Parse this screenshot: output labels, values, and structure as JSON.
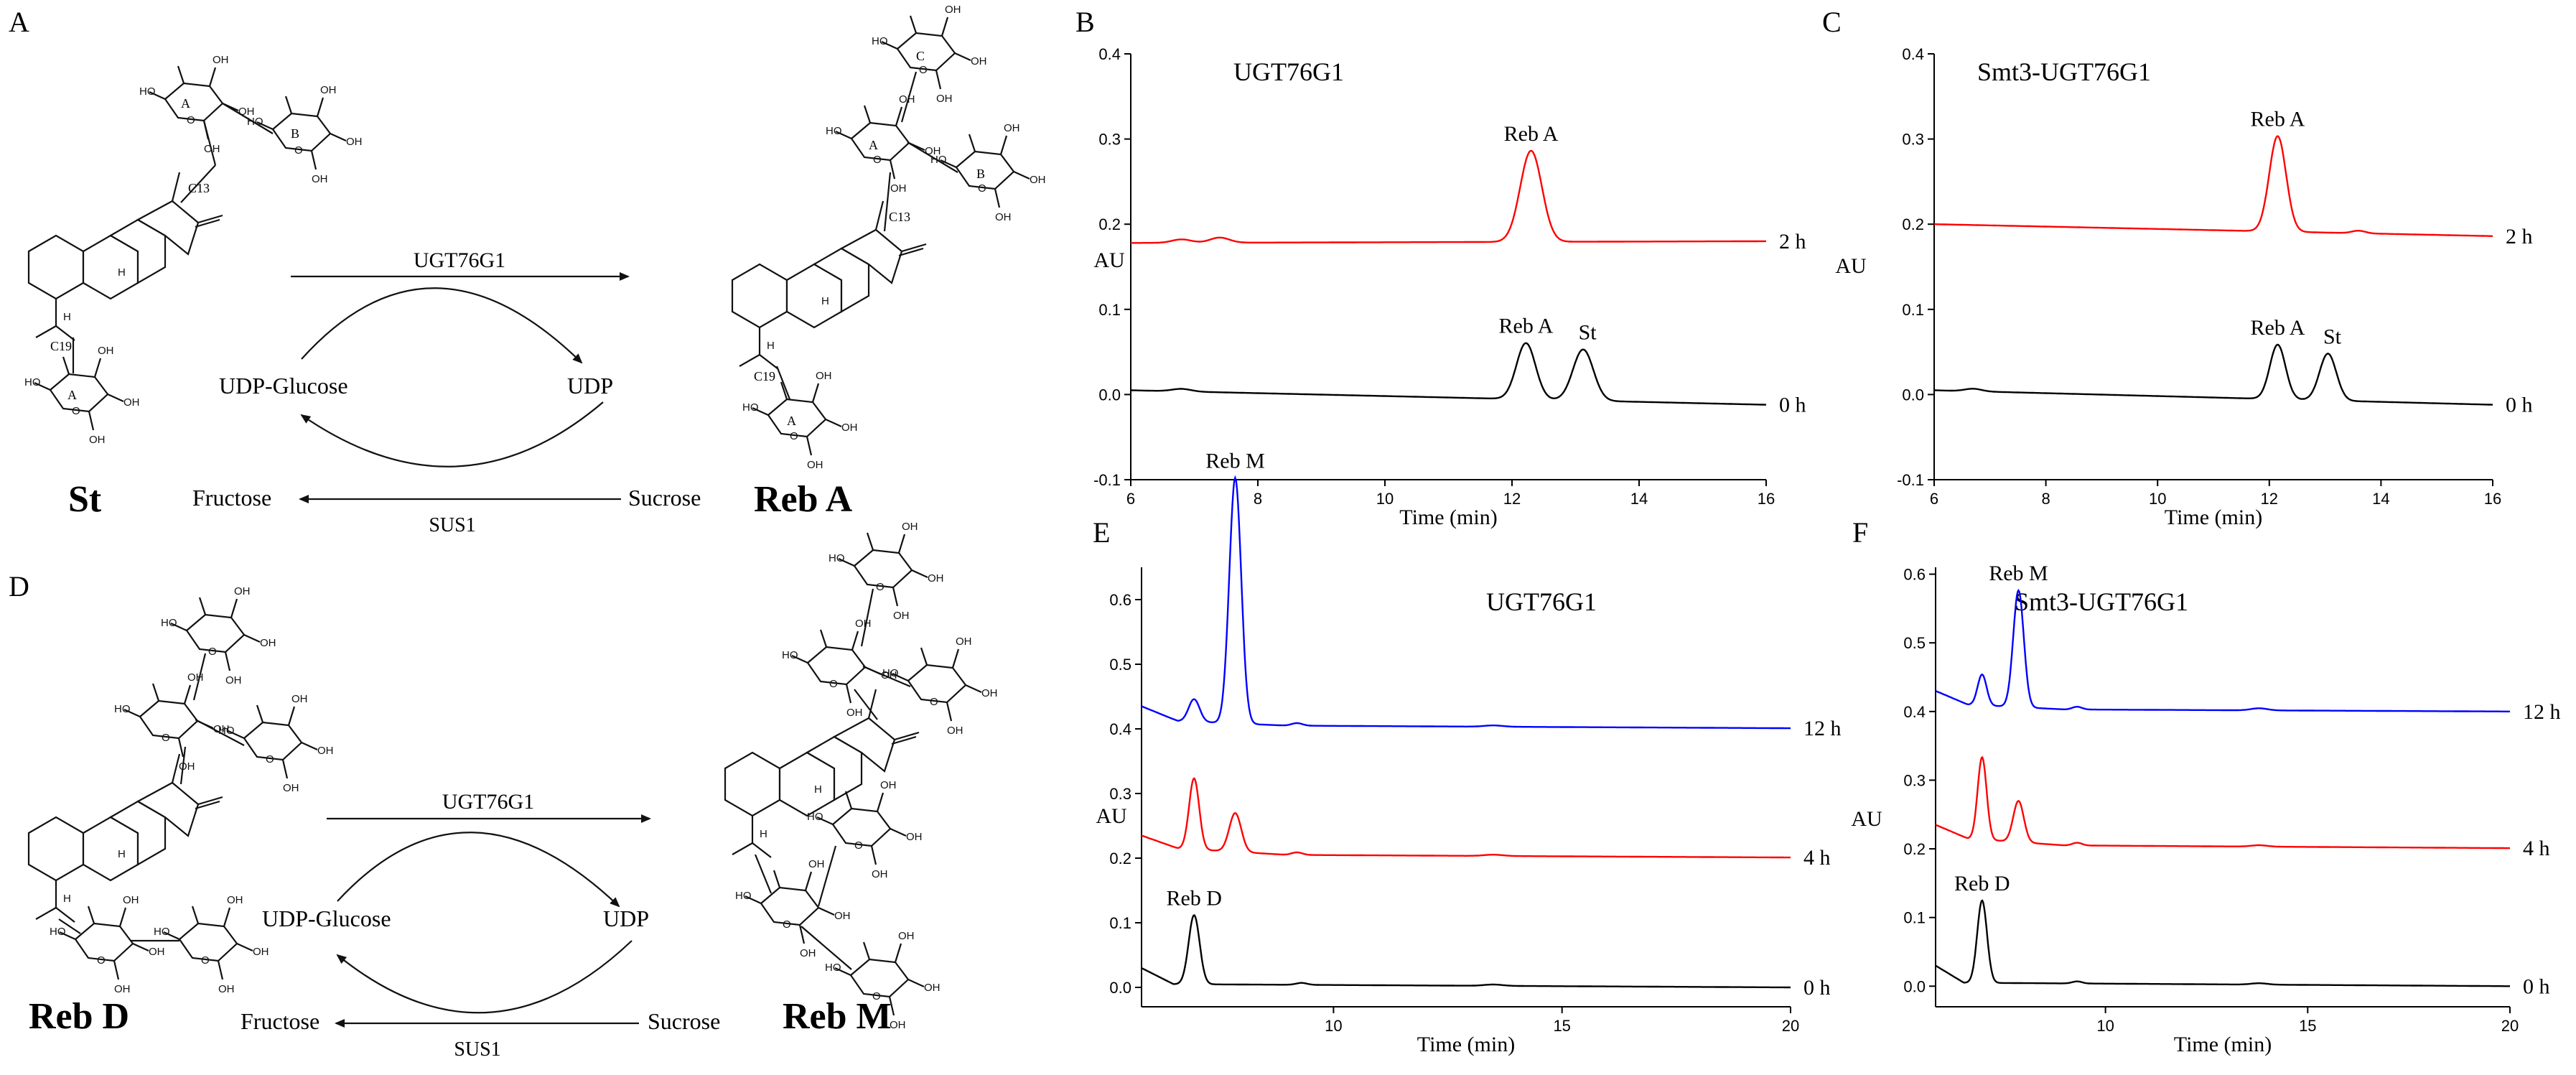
{
  "panel_labels": {
    "A": "A",
    "B": "B",
    "C": "C",
    "D": "D",
    "E": "E",
    "F": "F"
  },
  "scheme_a": {
    "substrate": "St",
    "product": "Reb A",
    "enzyme": "UGT76G1",
    "cofactor_in": "UDP-Glucose",
    "cofactor_out": "UDP",
    "sucrose": "Sucrose",
    "fructose": "Fructose",
    "enzyme2": "SUS1",
    "ring_labels": {
      "A": "A",
      "B": "B",
      "C": "C"
    },
    "c13": "C13",
    "c19": "C19"
  },
  "scheme_d": {
    "substrate": "Reb D",
    "product": "Reb M",
    "enzyme": "UGT76G1",
    "cofactor_in": "UDP-Glucose",
    "cofactor_out": "UDP",
    "sucrose": "Sucrose",
    "fructose": "Fructose",
    "enzyme2": "SUS1"
  },
  "colors": {
    "h0": "#000000",
    "h2": "#ff0000",
    "h4": "#ff0000",
    "h12": "#0000ff"
  },
  "chart_data": [
    {
      "id": "B",
      "type": "line",
      "title": "UGT76G1",
      "xlabel": "Time (min)",
      "ylabel": "AU",
      "xlim": [
        6,
        16
      ],
      "ylim": [
        -0.1,
        0.4
      ],
      "xticks": [
        6,
        8,
        10,
        12,
        14,
        16
      ],
      "yticks": [
        -0.1,
        0.0,
        0.1,
        0.2,
        0.3,
        0.4
      ],
      "ytick_labels": [
        "-0.1",
        "0.0",
        "0.1",
        "0.2",
        "0.3",
        "0.4"
      ],
      "series": [
        {
          "name": "2 h",
          "color": "#ff0000",
          "baseline": [
            [
              6,
              0.178
            ],
            [
              16,
              0.18
            ]
          ],
          "wiggles": [
            [
              6.8,
              0.004,
              0.15
            ],
            [
              7.4,
              0.006,
              0.15
            ]
          ],
          "peaks": [
            {
              "t": 12.3,
              "h": 0.107,
              "w": 0.17,
              "label": "Reb A"
            }
          ]
        },
        {
          "name": "0 h",
          "color": "#000000",
          "baseline": [
            [
              6,
              0.005
            ],
            [
              16,
              -0.012
            ]
          ],
          "wiggles": [
            [
              6.8,
              0.003,
              0.15
            ]
          ],
          "peaks": [
            {
              "t": 12.22,
              "h": 0.066,
              "w": 0.15,
              "label": "Reb A"
            },
            {
              "t": 13.12,
              "h": 0.06,
              "w": 0.16,
              "label": "St"
            }
          ]
        }
      ]
    },
    {
      "id": "C",
      "type": "line",
      "title": "Smt3-UGT76G1",
      "xlabel": "Time (min)",
      "ylabel": "AU",
      "xlim": [
        6,
        16
      ],
      "ylim": [
        -0.1,
        0.4
      ],
      "xticks": [
        6,
        8,
        10,
        12,
        14,
        16
      ],
      "yticks": [
        -0.1,
        0.0,
        0.1,
        0.2,
        0.3,
        0.4
      ],
      "ytick_labels": [
        "-0.1",
        "0.0",
        "0.1",
        "0.2",
        "0.3",
        "0.4"
      ],
      "series": [
        {
          "name": "2 h",
          "color": "#ff0000",
          "baseline": [
            [
              6,
              0.2
            ],
            [
              16,
              0.186
            ]
          ],
          "wiggles": [
            [
              13.6,
              0.003,
              0.12
            ]
          ],
          "peaks": [
            {
              "t": 12.15,
              "h": 0.112,
              "w": 0.15,
              "label": "Reb A"
            }
          ]
        },
        {
          "name": "0 h",
          "color": "#000000",
          "baseline": [
            [
              6,
              0.005
            ],
            [
              16,
              -0.012
            ]
          ],
          "wiggles": [
            [
              6.7,
              0.003,
              0.15
            ]
          ],
          "peaks": [
            {
              "t": 12.15,
              "h": 0.064,
              "w": 0.14,
              "label": "Reb A"
            },
            {
              "t": 13.05,
              "h": 0.055,
              "w": 0.15,
              "label": "St"
            }
          ]
        }
      ]
    },
    {
      "id": "E",
      "type": "line",
      "title": "UGT76G1",
      "xlabel": "Time (min)",
      "ylabel": "AU",
      "xlim": [
        5.8,
        20
      ],
      "ylim": [
        -0.03,
        0.65
      ],
      "xticks": [
        10,
        15,
        20
      ],
      "yticks": [
        0.0,
        0.1,
        0.2,
        0.3,
        0.4,
        0.5,
        0.6
      ],
      "ytick_labels": [
        "0.0",
        "0.1",
        "0.2",
        "0.3",
        "0.4",
        "0.5",
        "0.6"
      ],
      "series": [
        {
          "name": "12 h",
          "color": "#0000ff",
          "baseline": [
            [
              5.8,
              0.435
            ],
            [
              6.6,
              0.412
            ],
            [
              9,
              0.405
            ],
            [
              20,
              0.401
            ]
          ],
          "wiggles": [
            [
              9.2,
              0.004,
              0.12
            ],
            [
              13.5,
              0.002,
              0.2
            ]
          ],
          "peaks": [
            {
              "t": 6.95,
              "h": 0.035,
              "w": 0.12,
              "label": ""
            },
            {
              "t": 7.85,
              "h": 0.38,
              "w": 0.13,
              "label": "Reb M"
            }
          ]
        },
        {
          "name": "4 h",
          "color": "#ff0000",
          "baseline": [
            [
              5.8,
              0.235
            ],
            [
              6.6,
              0.215
            ],
            [
              9,
              0.205
            ],
            [
              20,
              0.201
            ]
          ],
          "wiggles": [
            [
              9.2,
              0.004,
              0.12
            ],
            [
              13.5,
              0.002,
              0.2
            ]
          ],
          "peaks": [
            {
              "t": 6.95,
              "h": 0.11,
              "w": 0.11,
              "label": ""
            },
            {
              "t": 7.85,
              "h": 0.06,
              "w": 0.13,
              "label": ""
            }
          ]
        },
        {
          "name": "0 h",
          "color": "#000000",
          "baseline": [
            [
              5.8,
              0.03
            ],
            [
              6.5,
              0.005
            ],
            [
              20,
              0.0
            ]
          ],
          "wiggles": [
            [
              9.3,
              0.003,
              0.12
            ],
            [
              13.5,
              0.002,
              0.2
            ]
          ],
          "peaks": [
            {
              "t": 6.95,
              "h": 0.107,
              "w": 0.12,
              "label": "Reb D"
            }
          ]
        }
      ]
    },
    {
      "id": "F",
      "type": "line",
      "title": "Smt3-UGT76G1",
      "xlabel": "Time (min)",
      "ylabel": "AU",
      "xlim": [
        5.8,
        20
      ],
      "ylim": [
        -0.03,
        0.61
      ],
      "xticks": [
        10,
        15,
        20
      ],
      "yticks": [
        0.0,
        0.1,
        0.2,
        0.3,
        0.4,
        0.5,
        0.6
      ],
      "ytick_labels": [
        "0.0",
        "0.1",
        "0.2",
        "0.3",
        "0.4",
        "0.5",
        "0.6"
      ],
      "series": [
        {
          "name": "12 h",
          "color": "#0000ff",
          "baseline": [
            [
              5.8,
              0.43
            ],
            [
              6.6,
              0.41
            ],
            [
              9,
              0.403
            ],
            [
              20,
              0.4
            ]
          ],
          "wiggles": [
            [
              9.3,
              0.004,
              0.12
            ],
            [
              13.8,
              0.003,
              0.2
            ]
          ],
          "peaks": [
            {
              "t": 6.95,
              "h": 0.045,
              "w": 0.11,
              "label": ""
            },
            {
              "t": 7.85,
              "h": 0.17,
              "w": 0.13,
              "label": "Reb M"
            }
          ]
        },
        {
          "name": "4 h",
          "color": "#ff0000",
          "baseline": [
            [
              5.8,
              0.235
            ],
            [
              6.6,
              0.215
            ],
            [
              9,
              0.205
            ],
            [
              20,
              0.201
            ]
          ],
          "wiggles": [
            [
              9.3,
              0.004,
              0.12
            ],
            [
              13.8,
              0.002,
              0.2
            ]
          ],
          "peaks": [
            {
              "t": 6.95,
              "h": 0.12,
              "w": 0.11,
              "label": ""
            },
            {
              "t": 7.85,
              "h": 0.06,
              "w": 0.13,
              "label": ""
            }
          ]
        },
        {
          "name": "0 h",
          "color": "#000000",
          "baseline": [
            [
              5.8,
              0.03
            ],
            [
              6.5,
              0.005
            ],
            [
              20,
              0.0
            ]
          ],
          "wiggles": [
            [
              9.3,
              0.003,
              0.12
            ],
            [
              13.8,
              0.002,
              0.2
            ]
          ],
          "peaks": [
            {
              "t": 6.95,
              "h": 0.12,
              "w": 0.12,
              "label": "Reb D"
            }
          ]
        }
      ]
    }
  ]
}
